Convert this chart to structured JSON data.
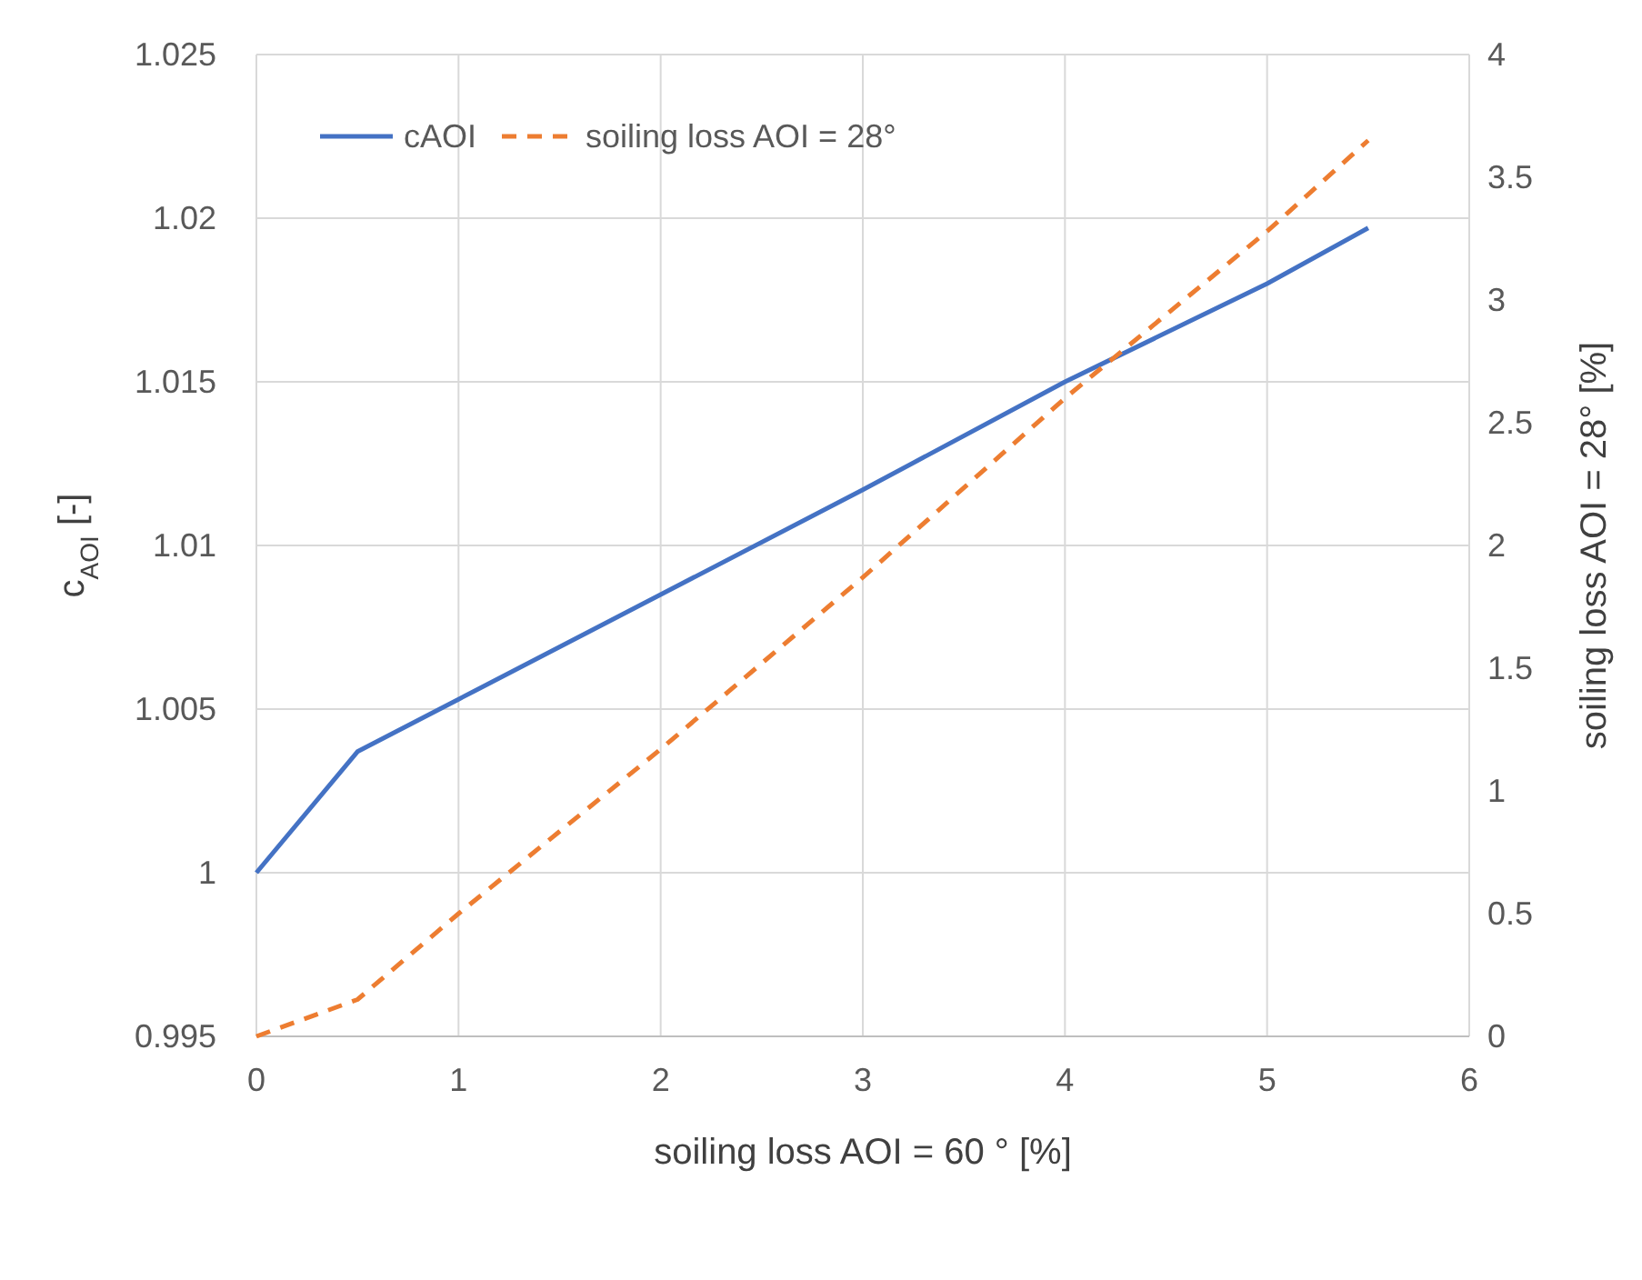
{
  "chart_data": {
    "type": "line",
    "xlabel": "soiling loss AOI = 60 ° [%]",
    "ylabel": "c$_{AOI}$ [-]",
    "y2label": "soiling loss AOI = 28° [%]",
    "xlim": [
      0,
      6
    ],
    "xticks": [
      0,
      1,
      2,
      3,
      4,
      5,
      6
    ],
    "ylim": [
      0.995,
      1.025
    ],
    "yticks": [
      0.995,
      1,
      1.005,
      1.01,
      1.015,
      1.02,
      1.025
    ],
    "y2lim": [
      0,
      4
    ],
    "y2ticks": [
      0,
      0.5,
      1,
      1.5,
      2,
      2.5,
      3,
      3.5,
      4
    ],
    "grid": true,
    "legend": "top left",
    "marker": "none",
    "series": [
      {
        "name": "cAOI",
        "color": "#4472c4",
        "line_style": "solid",
        "x": [
          0,
          0.5,
          1,
          2,
          3,
          4,
          5,
          5.5
        ],
        "values": [
          1,
          1.0037,
          1.0053,
          1.0085,
          1.0117,
          1.015,
          1.018,
          1.0197
        ]
      },
      {
        "name": "soiling loss AOI = 28°",
        "color": "#ed7d31",
        "line_style": "dashed",
        "axis": "y2",
        "x": [
          0,
          0.5,
          1,
          2,
          3,
          4,
          5,
          5.5
        ],
        "values": [
          0,
          0.15,
          0.5,
          1.17,
          1.87,
          2.6,
          3.28,
          3.65
        ]
      }
    ]
  }
}
